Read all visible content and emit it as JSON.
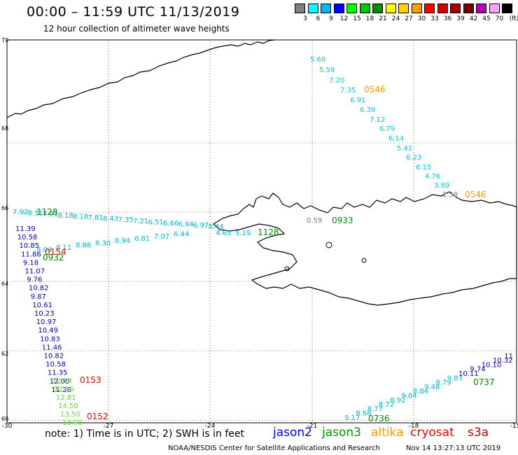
{
  "header": {
    "title": "00:00 – 11:59 UTC 11/13/2019",
    "subtitle": "12 hour collection of altimeter wave heights"
  },
  "legend": {
    "unit": "(ft)",
    "bins": [
      {
        "label": "3",
        "color": "#808080"
      },
      {
        "label": "6",
        "color": "#00ffff"
      },
      {
        "label": "9",
        "color": "#00b4ff"
      },
      {
        "label": "12",
        "color": "#0000ff"
      },
      {
        "label": "15",
        "color": "#00ff00"
      },
      {
        "label": "18",
        "color": "#00c800"
      },
      {
        "label": "21",
        "color": "#008c00"
      },
      {
        "label": "24",
        "color": "#ffff00"
      },
      {
        "label": "27",
        "color": "#ffd200"
      },
      {
        "label": "30",
        "color": "#ffa000"
      },
      {
        "label": "33",
        "color": "#ff0000"
      },
      {
        "label": "36",
        "color": "#d20000"
      },
      {
        "label": "39",
        "color": "#a00000"
      },
      {
        "label": "42",
        "color": "#780000"
      },
      {
        "label": "45",
        "color": "#b400b4"
      },
      {
        "label": "70",
        "color": "#ffa0ff"
      },
      {
        "label": "",
        "color": "#000000"
      }
    ]
  },
  "axes": {
    "lon_labels": [
      "-30",
      "-27",
      "-24",
      "-21",
      "-18",
      "-15"
    ],
    "lat_labels": [
      "70",
      "68",
      "66",
      "64",
      "62",
      "60"
    ]
  },
  "tracks": {
    "north_cyan": {
      "color": "#00c8e6",
      "values": [
        "5.69",
        "5.59",
        "7.20",
        "7.35",
        "6.91",
        "6.39",
        "7.12",
        "6.79",
        "6.14",
        "5.41",
        "6.23",
        "6.15",
        "4.76",
        "3.89"
      ],
      "grey_value": "2.58",
      "grey_color": "#808080",
      "time_top": "0546",
      "time_bottom": "0546",
      "time_color": "#ff9900"
    },
    "west_cyan": {
      "color": "#00b4d2",
      "values": [
        "7.92",
        "8.11",
        "7.91",
        "8.18",
        "8.18",
        "7.81",
        "8.43",
        "7.35",
        "7.21",
        "6.51",
        "6.66",
        "6.94",
        "6.97",
        "8.44",
        "8.04",
        "8.11",
        "8.88",
        "8.30",
        "8.94",
        "6.81",
        "7.07",
        "6.44",
        "4.65",
        "5.19"
      ],
      "grey_value": "0.59",
      "grey_color": "#808080",
      "time_west": "1128",
      "time_center": "1128",
      "time_east": "0933",
      "time_color": "#008c00"
    },
    "jason2": {
      "color": "#0000c8",
      "values": [
        "11.39",
        "10.58",
        "10.85",
        "11.86",
        "9.18",
        "11.07",
        "9.76",
        "10.82",
        "9.87",
        "10.61",
        "10.23",
        "10.97",
        "10.49",
        "10.83",
        "11.46",
        "10.82",
        "10.58",
        "11.35",
        "12.00",
        "11.28"
      ],
      "time": "0932",
      "time_color": "#008c00"
    },
    "green_south": {
      "color": "#64dc32",
      "values": [
        "12.14",
        "12.26",
        "12.81",
        "14.50",
        "13.50",
        "13.98"
      ]
    },
    "red_labels": {
      "color": "#ff0000",
      "times": [
        "0154",
        "0153",
        "0152"
      ]
    },
    "southeast": {
      "color": "#00b4d2",
      "values": [
        "9.17",
        "8.68",
        "8.77",
        "8.72",
        "8.92",
        "9.04",
        "8.84",
        "9.48",
        "8.79",
        "9.83",
        "10.11",
        "9.74",
        "10.10",
        "10.32",
        "11"
      ],
      "blue_color": "#0000c8",
      "time_east": "0737",
      "time_west": "0736",
      "time_color": "#008c00"
    }
  },
  "footer": {
    "note": "note: 1) Time is in UTC; 2) SWH is in feet",
    "missions": [
      {
        "name": "jason2",
        "color": "#0000ff"
      },
      {
        "name": "jason3",
        "color": "#009600"
      },
      {
        "name": "altika",
        "color": "#ff9900"
      },
      {
        "name": "cryosat",
        "color": "#ff0000"
      },
      {
        "name": "s3a",
        "color": "#c80000"
      }
    ],
    "credit": "NOAA/NESDIS Center for Satellite Applications and Research",
    "timestamp": "Nov 14 13:27:13 UTC 2019"
  }
}
